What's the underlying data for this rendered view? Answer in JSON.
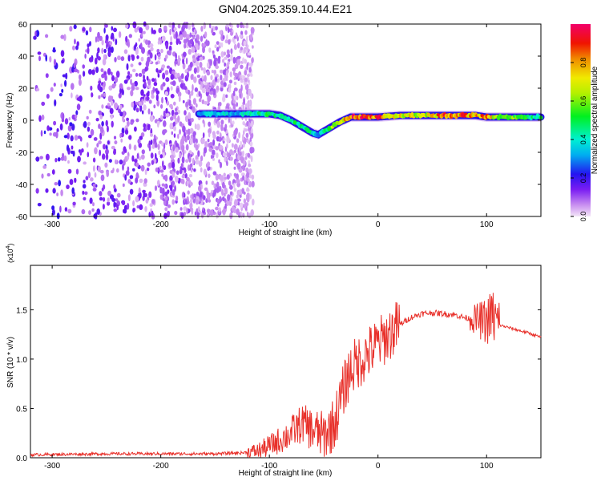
{
  "title": "GN04.2025.359.10.44.E21",
  "colors": {
    "snr_line": "#e8302a",
    "axis": "#000000",
    "background": "#ffffff"
  },
  "chart_data": [
    {
      "type": "heatmap",
      "xlabel": "Height of straight line (km)",
      "ylabel": "Frequency (Hz)",
      "xlim": [
        -320,
        150
      ],
      "ylim": [
        -60,
        60
      ],
      "xticks": [
        -300,
        -200,
        -100,
        0,
        100
      ],
      "xtick_labels": [
        "-300",
        "-200",
        "-100",
        "0",
        "100"
      ],
      "yticks": [
        -60,
        -40,
        -20,
        0,
        20,
        40,
        60
      ],
      "ytick_labels": [
        "-60",
        "-40",
        "-20",
        "0",
        "20",
        "40",
        "60"
      ],
      "colorbar": {
        "label": "Normalized spectral amplitude",
        "range": [
          0,
          1
        ],
        "ticks": [
          0.0,
          0.2,
          0.4,
          0.6,
          0.8
        ],
        "tick_labels": [
          "0.0",
          "0.2",
          "0.4",
          "0.6",
          "0.8"
        ]
      },
      "noise_region_x": [
        -320,
        -115
      ],
      "ridge": {
        "x": [
          -165,
          -150,
          -140,
          -130,
          -120,
          -110,
          -100,
          -90,
          -80,
          -70,
          -60,
          -55,
          -45,
          -35,
          -25,
          -15,
          0,
          20,
          40,
          60,
          80,
          90,
          100,
          110,
          130,
          150
        ],
        "frequency": [
          4,
          4,
          4,
          4,
          4,
          4,
          4,
          3,
          0,
          -4,
          -8,
          -9,
          -5,
          -1,
          2,
          2,
          2,
          3,
          3,
          3,
          3,
          3,
          2,
          2,
          2,
          2
        ],
        "amplitude": [
          0.3,
          0.4,
          0.4,
          0.35,
          0.45,
          0.45,
          0.5,
          0.45,
          0.5,
          0.5,
          0.45,
          0.3,
          0.6,
          0.7,
          0.9,
          0.95,
          0.9,
          0.75,
          0.7,
          0.9,
          0.85,
          0.8,
          0.9,
          0.7,
          0.55,
          0.5
        ]
      }
    },
    {
      "type": "line",
      "xlabel": "Height of straight line (km)",
      "ylabel": "SNR (10 * v/v)",
      "y_scale_label": "(x10",
      "y_scale_exponent": "4",
      "y_scale_suffix": ")",
      "xlim": [
        -320,
        150
      ],
      "ylim": [
        0,
        1.95
      ],
      "xticks": [
        -300,
        -200,
        -100,
        0,
        100
      ],
      "xtick_labels": [
        "-300",
        "-200",
        "-100",
        "0",
        "100"
      ],
      "yticks": [
        0,
        0.5,
        1.0,
        1.5
      ],
      "ytick_labels": [
        "0.0",
        "0.5",
        "1.0",
        "1.5"
      ],
      "series": [
        {
          "name": "SNR",
          "x": [
            -320,
            -250,
            -200,
            -150,
            -125,
            -110,
            -100,
            -90,
            -80,
            -70,
            -60,
            -50,
            -40,
            -35,
            -30,
            -25,
            -20,
            -10,
            0,
            10,
            20,
            30,
            40,
            50,
            60,
            70,
            80,
            90,
            100,
            105,
            110,
            120,
            130,
            140,
            150
          ],
          "y": [
            0.03,
            0.04,
            0.04,
            0.04,
            0.05,
            0.07,
            0.12,
            0.18,
            0.25,
            0.35,
            0.28,
            0.22,
            0.35,
            0.55,
            0.75,
            0.9,
            0.95,
            1.05,
            1.15,
            1.25,
            1.35,
            1.42,
            1.46,
            1.47,
            1.46,
            1.45,
            1.42,
            1.4,
            1.38,
            1.45,
            1.35,
            1.32,
            1.29,
            1.26,
            1.22
          ]
        }
      ]
    }
  ]
}
